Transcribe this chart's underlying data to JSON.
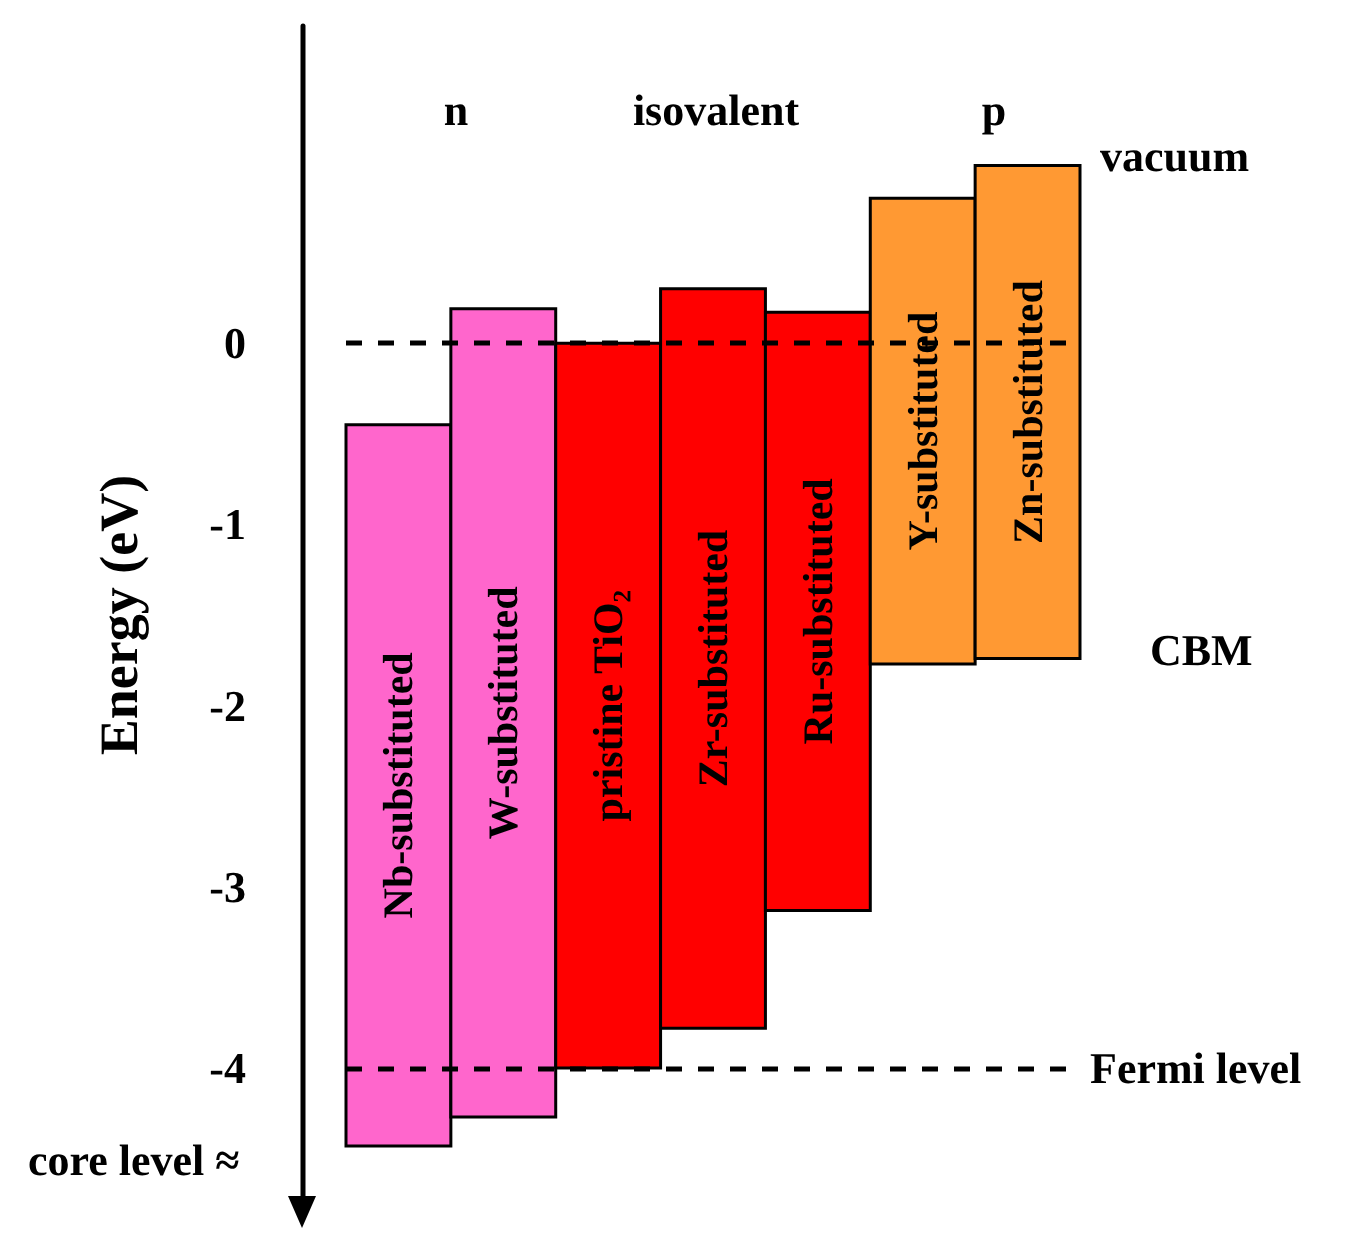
{
  "chart_data": {
    "type": "bar",
    "ylabel": "Energy (eV)",
    "categories": [
      "Nb-substituted",
      "W-substituted",
      "pristine TiO₂",
      "Zr-substituted",
      "Ru-substituted",
      "Y-substituted",
      "Zn-substituted"
    ],
    "values": [
      3.98,
      4.46,
      4.0,
      4.08,
      3.3,
      2.57,
      2.72
    ],
    "base": [
      -4.43,
      -4.27,
      -4.0,
      -3.78,
      -3.13,
      -1.77,
      -1.74
    ],
    "colors": [
      "#ff66cc",
      "#ff66cc",
      "#ff0000",
      "#ff0000",
      "#ff0000",
      "#ff9933",
      "#ff9933"
    ],
    "ylim": [
      -4.75,
      1.75
    ],
    "yticks": [
      -4,
      -3,
      -2,
      -1,
      0
    ],
    "tick_labels": "y",
    "ref_lines": [
      {
        "axis": "y",
        "value": 0,
        "line_style": "dashed"
      },
      {
        "axis": "y",
        "value": -4,
        "label": "Fermi level",
        "line_style": "dashed"
      }
    ],
    "annotations": [
      "n",
      "isovalent",
      "p",
      "core level ≈",
      "vacuum",
      "CBM"
    ]
  }
}
